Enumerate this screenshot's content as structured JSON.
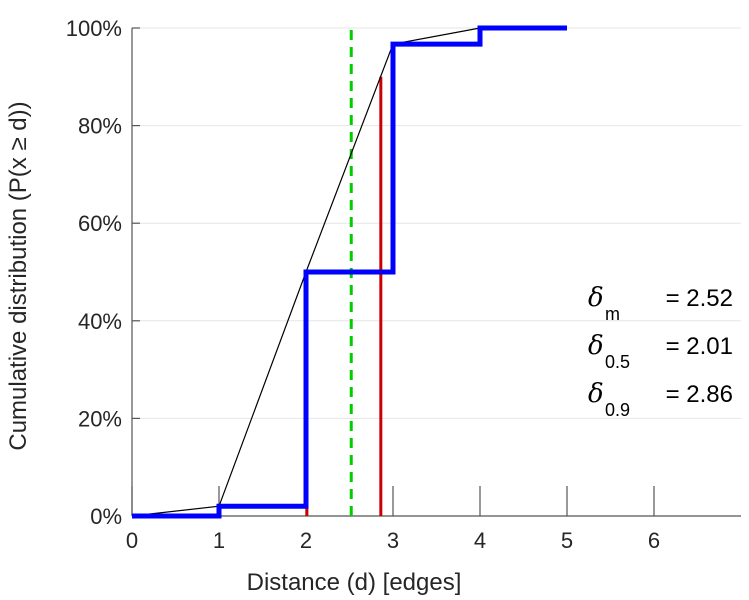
{
  "chart_data": {
    "type": "line",
    "title": "",
    "xlabel": "Distance (d) [edges]",
    "ylabel": "Cumulative distribution (P(x ≥ d))",
    "xlim": [
      0,
      7
    ],
    "ylim": [
      0,
      1
    ],
    "x_ticks": [
      0,
      1,
      2,
      3,
      4,
      5,
      6
    ],
    "y_ticks": [
      {
        "value": 0,
        "label": "0%"
      },
      {
        "value": 0.2,
        "label": "20%"
      },
      {
        "value": 0.4,
        "label": "40%"
      },
      {
        "value": 0.6,
        "label": "60%"
      },
      {
        "value": 0.8,
        "label": "80%"
      },
      {
        "value": 1.0,
        "label": "100%"
      }
    ],
    "grid": "horizontal",
    "series": [
      {
        "kind": "step",
        "color": "#0000ff",
        "x": [
          0,
          1,
          1,
          2,
          2,
          3,
          3,
          4,
          4,
          5
        ],
        "y": [
          0,
          0,
          0.02,
          0.02,
          0.5,
          0.5,
          0.967,
          0.967,
          1.0,
          1.0
        ]
      },
      {
        "kind": "line",
        "color": "#000000",
        "x": [
          0,
          1,
          2,
          3,
          4,
          5
        ],
        "y": [
          0,
          0.02,
          0.5,
          0.967,
          1.0,
          1.0
        ]
      }
    ],
    "markers": [
      {
        "kind": "vertical-solid",
        "color": "#cc0000",
        "x": 2.01,
        "y_top": 0.5
      },
      {
        "kind": "vertical-solid",
        "color": "#cc0000",
        "x": 2.86,
        "y_top": 0.9
      },
      {
        "kind": "vertical-dashed",
        "color": "#00cc00",
        "x": 2.52,
        "y_top": 1.0
      }
    ],
    "annotations": [
      {
        "symbol": "δ",
        "sub": "m",
        "text": "= 2.52"
      },
      {
        "symbol": "δ",
        "sub": "0.5",
        "text": "= 2.01"
      },
      {
        "symbol": "δ",
        "sub": "0.9",
        "text": "= 2.86"
      }
    ]
  }
}
